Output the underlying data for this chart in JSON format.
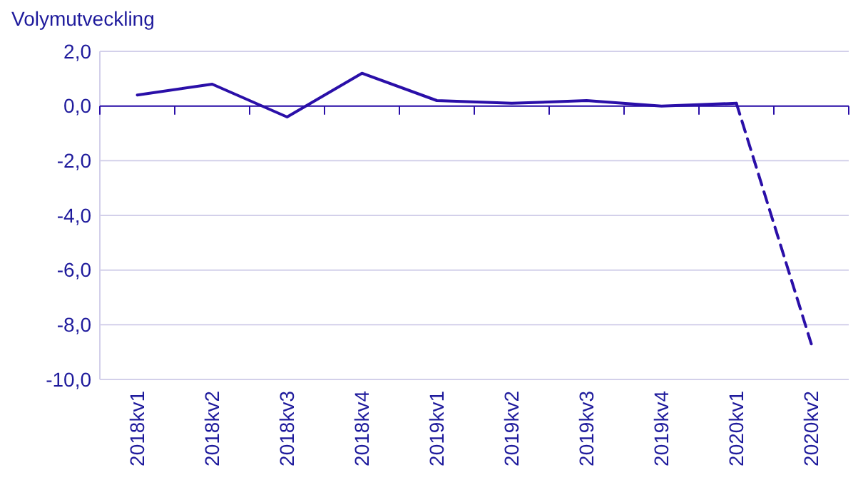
{
  "chart_data": {
    "type": "line",
    "ylabel": "Volymutveckling",
    "categories": [
      "2018kv1",
      "2018kv2",
      "2018kv3",
      "2018kv4",
      "2019kv1",
      "2019kv2",
      "2019kv3",
      "2019kv4",
      "2020kv1",
      "2020kv2"
    ],
    "series": [
      {
        "color": "#2a0fa8",
        "line_style": "solid",
        "values": [
          0.4,
          0.8,
          -0.4,
          1.2,
          0.2,
          0.1,
          0.2,
          0.0,
          0.1,
          null
        ]
      },
      {
        "color": "#2a0fa8",
        "line_style": "dashed",
        "values": [
          null,
          null,
          null,
          null,
          null,
          null,
          null,
          null,
          0.1,
          -8.7
        ]
      }
    ],
    "ylim": [
      -10,
      2
    ],
    "yticks": [
      {
        "value": 2,
        "label": "2,0"
      },
      {
        "value": 0,
        "label": "0,0"
      },
      {
        "value": -2,
        "label": "-2,0"
      },
      {
        "value": -4,
        "label": "-4,0"
      },
      {
        "value": -6,
        "label": "-6,0"
      },
      {
        "value": -8,
        "label": "-8,0"
      },
      {
        "value": -10,
        "label": "-10,0"
      }
    ],
    "ref_lines": [
      {
        "axis": "y",
        "value": 0,
        "color": "#2a0fa8"
      }
    ],
    "grid": "y",
    "marker": "none"
  }
}
